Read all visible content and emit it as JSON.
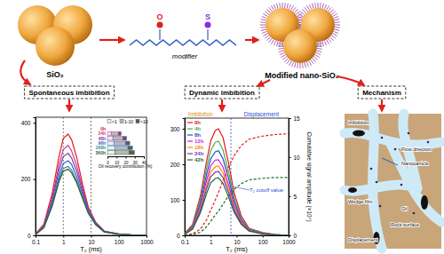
{
  "header": {
    "sio2": "SiO₂",
    "modifier": "modifier",
    "atoms": [
      "O",
      "S"
    ],
    "modified": "Modified nano-SiO₂"
  },
  "sections": [
    "Spontaneous imbibition",
    "Dynamic imbibition",
    "Mechanism"
  ],
  "chart_data": [
    {
      "type": "line",
      "x_label": "T₂ (ms)",
      "log": "x",
      "xlim": [
        0.1,
        1000
      ],
      "xticks": [
        0.1,
        1,
        10,
        100,
        1000
      ],
      "ylim": [
        0,
        420
      ],
      "yticks": [
        0,
        200,
        400
      ],
      "x": [
        0.1,
        0.2,
        0.4,
        0.7,
        1,
        1.5,
        2,
        3,
        5,
        8,
        15,
        30,
        100,
        300,
        1000
      ],
      "cutoffs": [
        1,
        10
      ],
      "series": [
        {
          "name": "0h",
          "color": "#e41a1c",
          "values": [
            5,
            40,
            150,
            280,
            345,
            360,
            340,
            280,
            180,
            100,
            45,
            15,
            5,
            1,
            0
          ]
        },
        {
          "name": "24h",
          "color": "#c2379b",
          "values": [
            4,
            35,
            135,
            250,
            305,
            320,
            300,
            250,
            165,
            95,
            45,
            15,
            5,
            1,
            0
          ]
        },
        {
          "name": "48h",
          "color": "#7b3fa0",
          "values": [
            4,
            32,
            125,
            230,
            280,
            292,
            275,
            230,
            155,
            90,
            42,
            14,
            4,
            1,
            0
          ]
        },
        {
          "name": "96h",
          "color": "#3a5fcd",
          "values": [
            3,
            30,
            115,
            210,
            255,
            265,
            252,
            210,
            145,
            85,
            40,
            13,
            4,
            1,
            0
          ]
        },
        {
          "name": "168h",
          "color": "#2e8b9a",
          "values": [
            3,
            28,
            108,
            198,
            238,
            245,
            232,
            195,
            135,
            80,
            38,
            12,
            4,
            1,
            0
          ]
        },
        {
          "name": "360h",
          "color": "#2f5f2f",
          "values": [
            3,
            27,
            104,
            190,
            228,
            235,
            222,
            188,
            130,
            78,
            37,
            12,
            4,
            1,
            0
          ]
        }
      ],
      "inset": {
        "type": "bar",
        "orientation": "horizontal",
        "stacked": true,
        "legend": "top",
        "x_label": "Oil recovery contribution (%)",
        "categories": [
          "0h",
          "24h",
          "48h",
          "96h",
          "168h",
          "360h"
        ],
        "colors": [
          "#e41a1c",
          "#c2379b",
          "#7b3fa0",
          "#3a5fcd",
          "#2e8b9a",
          "#2f5f2f"
        ],
        "xlim": [
          0,
          40
        ],
        "xticks": [
          0,
          10,
          20,
          30,
          40
        ],
        "series": [
          {
            "name": "<1",
            "color": "#f0f0f0",
            "values": [
              0,
              4,
              6,
              7,
              8,
              8.5
            ]
          },
          {
            "name": "1-10",
            "color": "#b8b8b8",
            "values": [
              0,
              8,
              11,
              13,
              14.5,
              15.5
            ]
          },
          {
            "name": ">10",
            "color": "#5a5a5a",
            "values": [
              0,
              3,
              4,
              4.5,
              5,
              5.5
            ]
          }
        ]
      }
    },
    {
      "type": "line",
      "x_label": "T₂ (ms)",
      "log": "x",
      "legend": "top-left",
      "xlim": [
        0.1,
        1000
      ],
      "xticks": [
        0.1,
        1,
        10,
        100,
        1000
      ],
      "ylim": [
        0,
        330
      ],
      "yticks": [
        0,
        100,
        200,
        300
      ],
      "y2lim": [
        0,
        15
      ],
      "y2ticks": [
        0,
        5,
        10,
        15
      ],
      "y2_label": "Cumulative signal amplitude (×10⁴)",
      "region_labels": [
        "Imbibition",
        "Displacement"
      ],
      "cutoff": 6,
      "cutoff_label": "T₂ cutoff value",
      "x": [
        0.1,
        0.2,
        0.4,
        0.7,
        1,
        1.5,
        2,
        3,
        5,
        8,
        15,
        30,
        100,
        300,
        1000
      ],
      "series": [
        {
          "name": "0h",
          "color": "#e41a1c",
          "values": [
            5,
            30,
            110,
            210,
            265,
            295,
            300,
            275,
            200,
            120,
            55,
            20,
            8,
            2,
            0
          ]
        },
        {
          "name": "4h",
          "color": "#4daf4a",
          "values": [
            4,
            27,
            100,
            190,
            238,
            262,
            265,
            240,
            175,
            105,
            48,
            18,
            7,
            2,
            0
          ]
        },
        {
          "name": "8h",
          "color": "#1f4fd8",
          "values": [
            4,
            24,
            90,
            172,
            215,
            235,
            238,
            215,
            158,
            95,
            44,
            16,
            6,
            2,
            0
          ]
        },
        {
          "name": "12h",
          "color": "#d81bd8",
          "values": [
            3,
            22,
            82,
            155,
            195,
            212,
            213,
            192,
            140,
            85,
            40,
            15,
            6,
            1,
            0
          ]
        },
        {
          "name": "18h",
          "color": "#ff8c00",
          "values": [
            3,
            20,
            75,
            142,
            178,
            193,
            195,
            175,
            128,
            78,
            37,
            14,
            5,
            1,
            0
          ]
        },
        {
          "name": "24h",
          "color": "#7b2fbf",
          "values": [
            3,
            19,
            70,
            132,
            165,
            178,
            180,
            162,
            118,
            72,
            34,
            13,
            5,
            1,
            0
          ]
        },
        {
          "name": "42h",
          "color": "#1b6b2b",
          "values": [
            3,
            17,
            63,
            118,
            148,
            160,
            162,
            146,
            106,
            65,
            31,
            12,
            4,
            1,
            0
          ]
        },
        {
          "color": "#e41a1c",
          "axis": "y2",
          "line_style": "dashed",
          "values": [
            0,
            0.2,
            0.8,
            2,
            3.2,
            4.5,
            5.5,
            7,
            8.8,
            10.2,
            11.5,
            12.3,
            12.7,
            12.9,
            13
          ]
        },
        {
          "color": "#1b6b2b",
          "axis": "y2",
          "line_style": "dashed",
          "values": [
            0,
            0.1,
            0.4,
            1.1,
            1.8,
            2.6,
            3.1,
            4,
            5.1,
            5.9,
            6.6,
            7.1,
            7.3,
            7.4,
            7.4
          ]
        }
      ]
    }
  ],
  "mechanism": {
    "labels": [
      "Imbibition",
      "Flow direction",
      "Nanoparticle",
      "Wedge film",
      "Oil",
      "Rock surface",
      "Displacement"
    ]
  }
}
